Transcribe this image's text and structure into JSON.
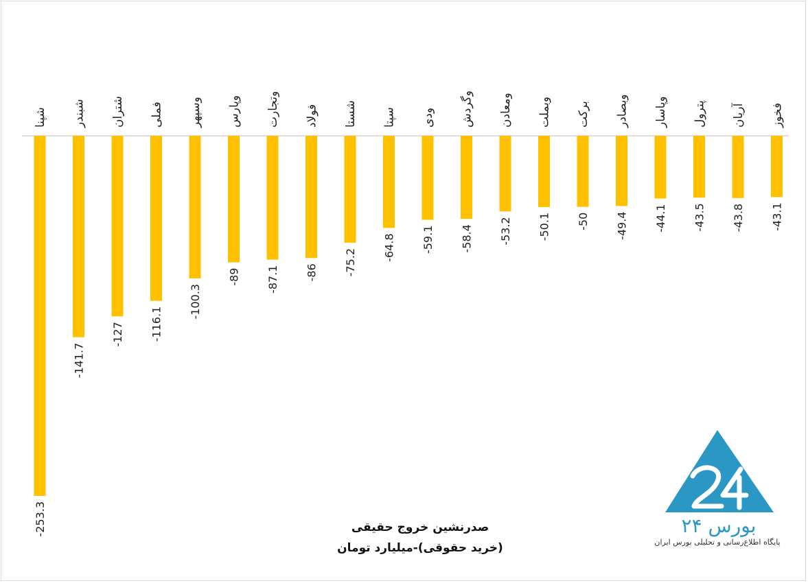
{
  "chart_data": {
    "type": "bar",
    "orientation": "vertical-down",
    "title": [
      "صدرنشین خروج حقیقی",
      "(خرید حقوقی)-میلیارد تومان"
    ],
    "categories": [
      "شپنا",
      "شبندر",
      "شتران",
      "فملی",
      "وسپهر",
      "وپارس",
      "وتجارت",
      "فولاد",
      "شستا",
      "سپتا",
      "ودی",
      "وگردش",
      "ومعادن",
      "وبملت",
      "برکت",
      "وبصادر",
      "وپاسار",
      "پترول",
      "آریان",
      "فخوز"
    ],
    "values": [
      -253.3,
      -141.7,
      -127,
      -116.1,
      -100.3,
      -89,
      -87.1,
      -86,
      -75.2,
      -64.8,
      -59.1,
      -58.4,
      -53.2,
      -50.1,
      -50,
      -49.4,
      -44.1,
      -43.5,
      -43.8,
      -43.1
    ],
    "value_labels": [
      "-253.3",
      "-141.7",
      "-127",
      "-116.1",
      "-100.3",
      "-89",
      "-87.1",
      "-86",
      "-75.2",
      "-64.8",
      "-59.1",
      "-58.4",
      "-53.2",
      "-50.1",
      "-50",
      "-49.4",
      "-44.1",
      "-43.5",
      "-43.8",
      "-43.1"
    ],
    "bar_color": "#FFC000",
    "grid": false,
    "legend": "none"
  },
  "brand": {
    "name": "بورس ۲۴",
    "tagline": "پایگاه اطلاع‌رسانی و تحلیلی بورس ایران",
    "color": "#2B97C4"
  }
}
